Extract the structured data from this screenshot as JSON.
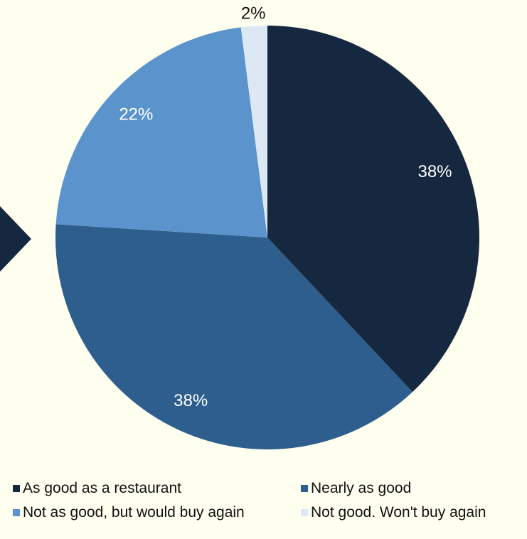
{
  "chart_data": {
    "type": "pie",
    "title": "",
    "start_angle_deg": 0,
    "direction": "clockwise",
    "slices": [
      {
        "label": "As good as a restaurant",
        "value": 38,
        "display": "38%",
        "color": "#16283F"
      },
      {
        "label": "Nearly as good",
        "value": 38,
        "display": "38%",
        "color": "#2D5E8E"
      },
      {
        "label": "Not as good, but would buy again",
        "value": 22,
        "display": "22%",
        "color": "#5B94CC"
      },
      {
        "label": "Not good. Won't buy again",
        "value": 2,
        "display": "2%",
        "color": "#DDE8F5"
      }
    ],
    "legend_position": "bottom",
    "label_colors": {
      "inside": "#FFFFFF",
      "outside": "#111111"
    }
  },
  "decoration": {
    "arrow_color": "#16283F"
  },
  "colors": {
    "background": "#FFFFF0"
  }
}
